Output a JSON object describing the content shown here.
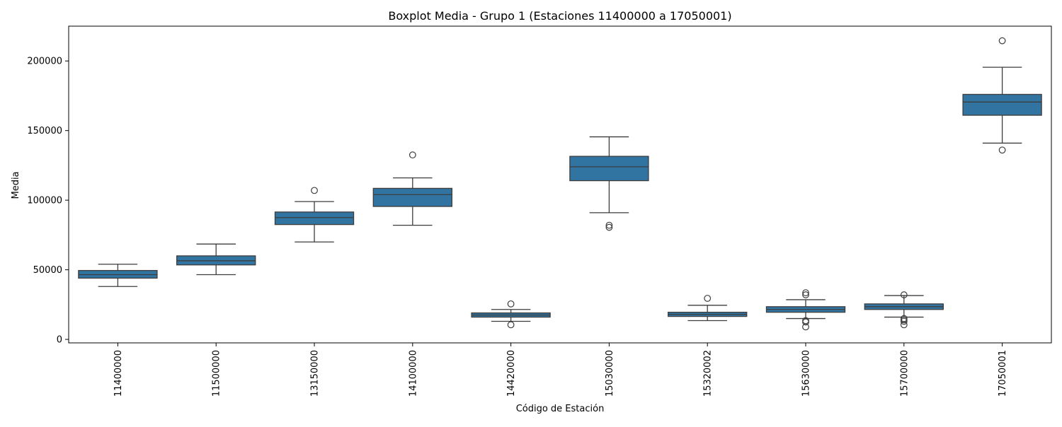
{
  "chart_data": {
    "type": "boxplot",
    "title": "Boxplot Media - Grupo 1 (Estaciones 11400000 a 17050001)",
    "xlabel": "Código de Estación",
    "ylabel": "Media",
    "ylim": [
      -2500,
      225000
    ],
    "yticks": [
      0,
      50000,
      100000,
      150000,
      200000
    ],
    "ytick_labels": [
      "0",
      "50000",
      "100000",
      "150000",
      "200000"
    ],
    "box_color": "#3274a1",
    "line_color": "#3d3d3d",
    "grid": false,
    "categories": [
      "11400000",
      "11500000",
      "13150000",
      "14100000",
      "14420000",
      "15030000",
      "15320002",
      "15630000",
      "15700000",
      "17050001"
    ],
    "boxes": [
      {
        "station": "11400000",
        "whisker_low": 38000,
        "q1": 44000,
        "median": 46500,
        "q3": 49500,
        "whisker_high": 54000,
        "outliers": []
      },
      {
        "station": "11500000",
        "whisker_low": 46500,
        "q1": 53500,
        "median": 56500,
        "q3": 60000,
        "whisker_high": 68500,
        "outliers": []
      },
      {
        "station": "13150000",
        "whisker_low": 70000,
        "q1": 82500,
        "median": 87500,
        "q3": 91500,
        "whisker_high": 99000,
        "outliers": [
          107000
        ]
      },
      {
        "station": "14100000",
        "whisker_low": 82000,
        "q1": 95500,
        "median": 104000,
        "q3": 108500,
        "whisker_high": 116000,
        "outliers": [
          132500
        ]
      },
      {
        "station": "14420000",
        "whisker_low": 13000,
        "q1": 16000,
        "median": 17500,
        "q3": 19000,
        "whisker_high": 21500,
        "outliers": [
          25500,
          10500
        ]
      },
      {
        "station": "15030000",
        "whisker_low": 91000,
        "q1": 114000,
        "median": 124000,
        "q3": 131500,
        "whisker_high": 145500,
        "outliers": [
          82000,
          80500
        ]
      },
      {
        "station": "15320002",
        "whisker_low": 13500,
        "q1": 16500,
        "median": 18000,
        "q3": 19500,
        "whisker_high": 24500,
        "outliers": [
          29500
        ]
      },
      {
        "station": "15630000",
        "whisker_low": 15000,
        "q1": 19500,
        "median": 21500,
        "q3": 23500,
        "whisker_high": 28500,
        "outliers": [
          33500,
          32000,
          13500,
          12500,
          9000
        ]
      },
      {
        "station": "15700000",
        "whisker_low": 16000,
        "q1": 21500,
        "median": 23500,
        "q3": 25500,
        "whisker_high": 31500,
        "outliers": [
          32000,
          15000,
          14000,
          13000,
          10500
        ]
      },
      {
        "station": "17050001",
        "whisker_low": 141000,
        "q1": 161000,
        "median": 170500,
        "q3": 176000,
        "whisker_high": 195500,
        "outliers": [
          214500,
          136000
        ]
      }
    ]
  }
}
